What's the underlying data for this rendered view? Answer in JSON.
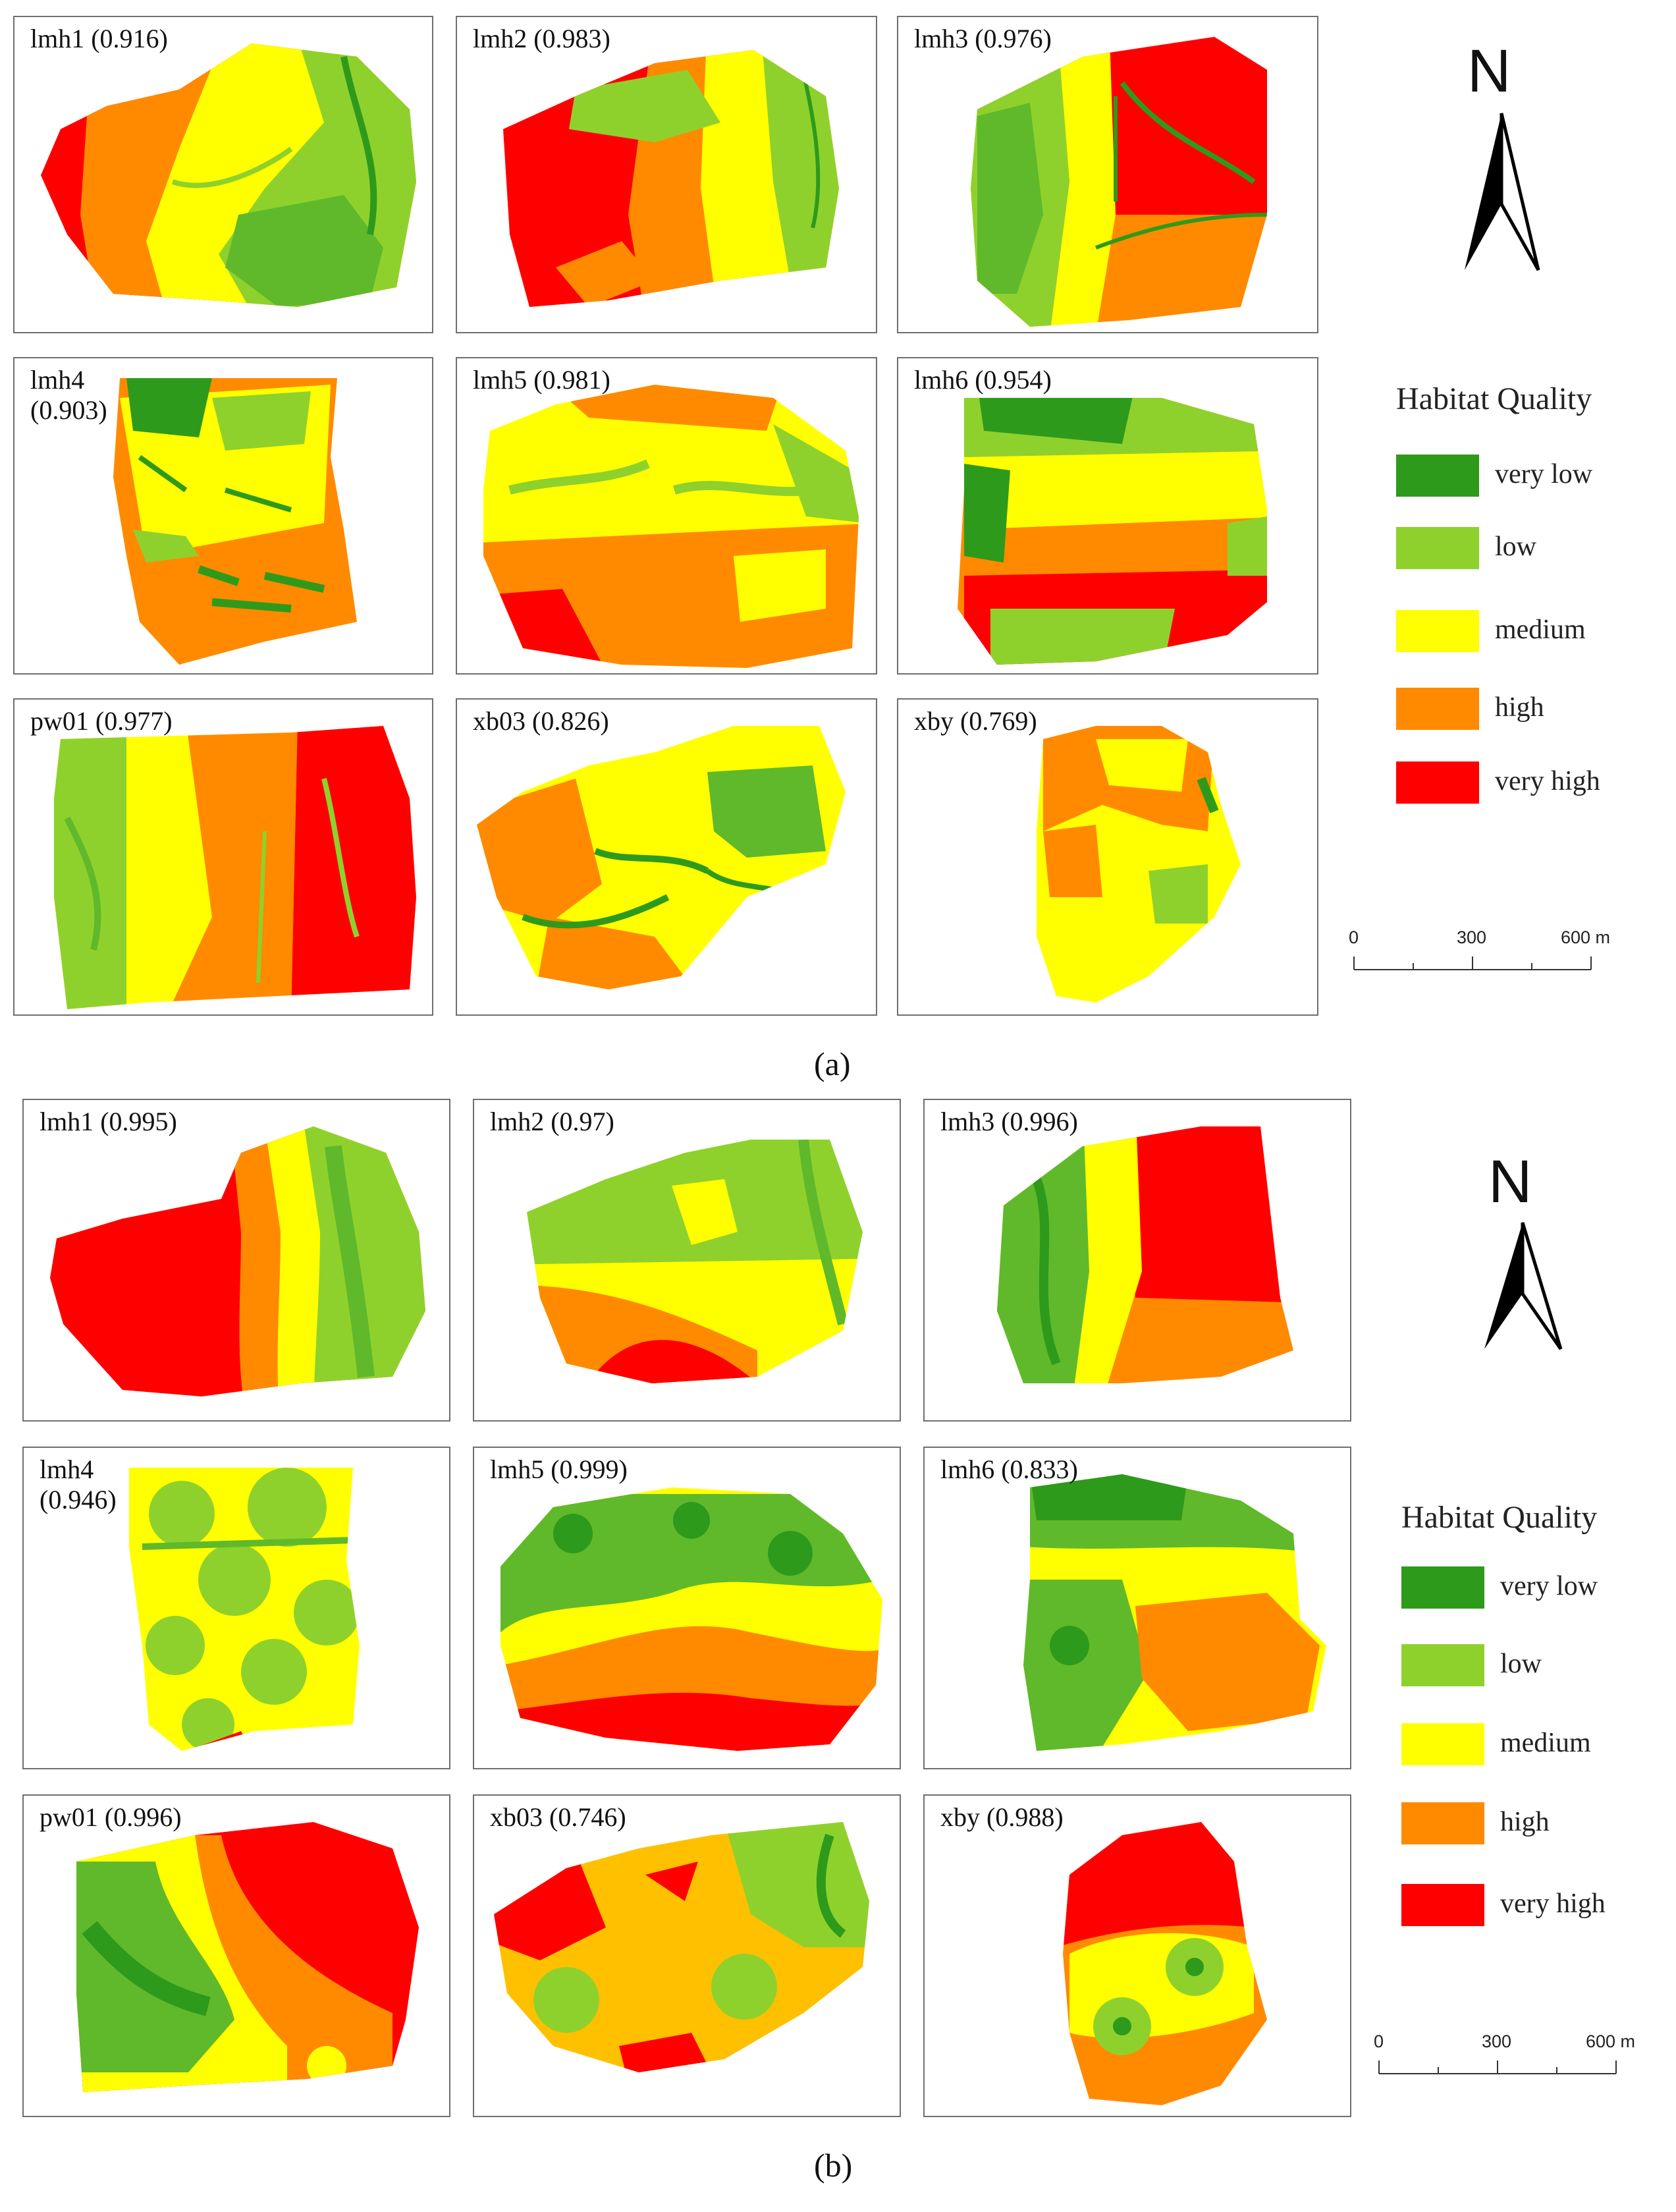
{
  "figure_a": {
    "caption": "(a)",
    "legend_title": "Habitat Quality",
    "north_label": "N",
    "scale": {
      "labels": [
        "0",
        "300",
        "600 m"
      ]
    },
    "panels": [
      {
        "label": "lmh1 (0.916)"
      },
      {
        "label": "lmh2 (0.983)"
      },
      {
        "label": "lmh3 (0.976)"
      },
      {
        "label": "lmh4\n(0.903)"
      },
      {
        "label": "lmh5 (0.981)"
      },
      {
        "label": "lmh6 (0.954)"
      },
      {
        "label": "pw01 (0.977)"
      },
      {
        "label": "xb03 (0.826)"
      },
      {
        "label": "xby (0.769)"
      }
    ]
  },
  "figure_b": {
    "caption": "(b)",
    "legend_title": "Habitat Quality",
    "north_label": "N",
    "scale": {
      "labels": [
        "0",
        "300",
        "600 m"
      ]
    },
    "panels": [
      {
        "label": "lmh1 (0.995)"
      },
      {
        "label": "lmh2 (0.97)"
      },
      {
        "label": "lmh3 (0.996)"
      },
      {
        "label": "lmh4\n(0.946)"
      },
      {
        "label": "lmh5 (0.999)"
      },
      {
        "label": "lmh6 (0.833)"
      },
      {
        "label": "pw01 (0.996)"
      },
      {
        "label": "xb03 (0.746)"
      },
      {
        "label": "xby (0.988)"
      }
    ]
  },
  "legend": {
    "classes": [
      {
        "label": "very low",
        "color": "#2e9a1c"
      },
      {
        "label": "low",
        "color": "#8fd12c"
      },
      {
        "label": "medium",
        "color": "#ffff00"
      },
      {
        "label": "high",
        "color": "#ff8a00"
      },
      {
        "label": "very high",
        "color": "#ff0000"
      }
    ]
  }
}
